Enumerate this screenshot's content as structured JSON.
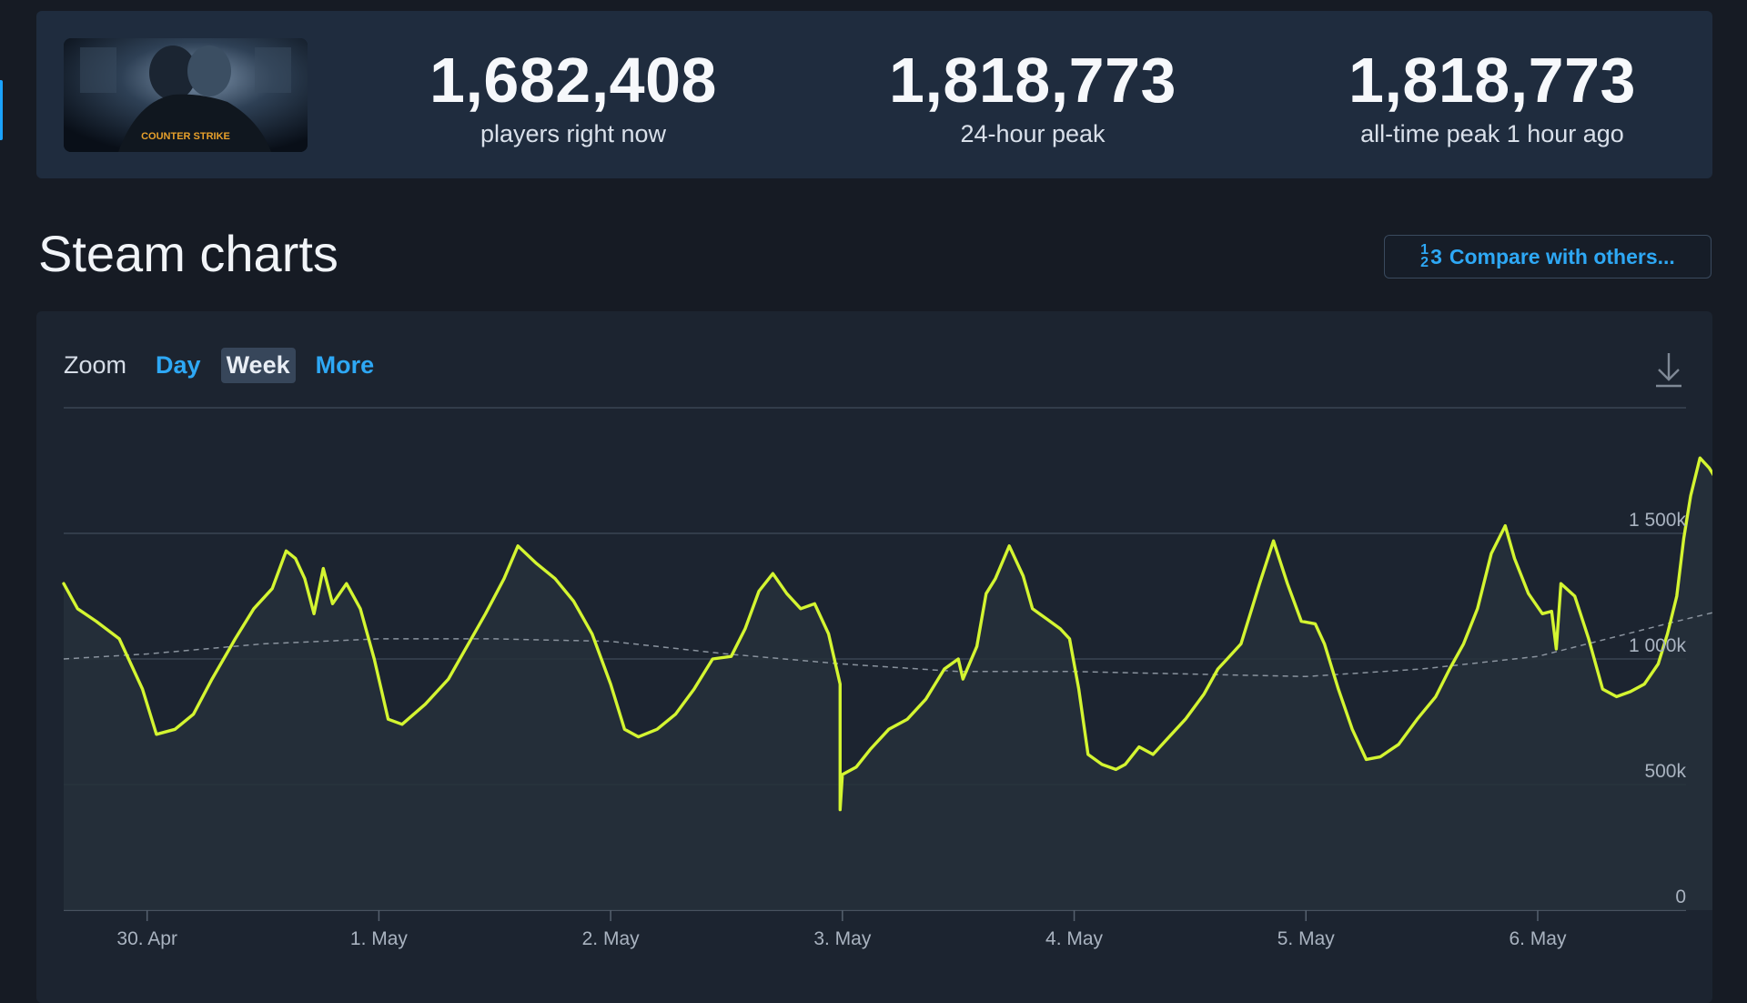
{
  "stats": [
    {
      "value": "1,682,408",
      "label": "players right now"
    },
    {
      "value": "1,818,773",
      "label": "24-hour peak"
    },
    {
      "value": "1,818,773",
      "label": "all-time peak 1 hour ago"
    }
  ],
  "game_thumb": {
    "logo_text": "COUNTER STRIKE"
  },
  "section_title": "Steam charts",
  "compare_button": {
    "numerator": "1",
    "denominator": "2",
    "digit": "3",
    "label": "Compare with others..."
  },
  "zoom": {
    "label": "Zoom",
    "options": [
      "Day",
      "Week",
      "More"
    ],
    "selected": "Week"
  },
  "download_icon": "download-icon",
  "colors": {
    "series": "#d4f531",
    "average": "#8a939e",
    "accent": "#2ea8f5"
  },
  "chart_data": {
    "type": "line",
    "x_labels": [
      "30. Apr",
      "1. May",
      "2. May",
      "3. May",
      "4. May",
      "5. May",
      "6. May"
    ],
    "y_ticks": [
      {
        "value": 0,
        "label": "0"
      },
      {
        "value": 500000,
        "label": "500k"
      },
      {
        "value": 1000000,
        "label": "1 000k"
      },
      {
        "value": 1500000,
        "label": "1 500k"
      }
    ],
    "ylim": [
      0,
      2000000
    ],
    "x_range_days": [
      -0.36,
      6.64
    ],
    "grid": true,
    "series": [
      {
        "kind": "players",
        "points": [
          [
            -0.36,
            1300000
          ],
          [
            -0.3,
            1200000
          ],
          [
            -0.22,
            1150000
          ],
          [
            -0.12,
            1080000
          ],
          [
            -0.02,
            880000
          ],
          [
            0.04,
            700000
          ],
          [
            0.12,
            720000
          ],
          [
            0.2,
            780000
          ],
          [
            0.28,
            920000
          ],
          [
            0.38,
            1080000
          ],
          [
            0.46,
            1200000
          ],
          [
            0.54,
            1280000
          ],
          [
            0.6,
            1430000
          ],
          [
            0.64,
            1400000
          ],
          [
            0.68,
            1320000
          ],
          [
            0.72,
            1180000
          ],
          [
            0.76,
            1360000
          ],
          [
            0.8,
            1220000
          ],
          [
            0.86,
            1300000
          ],
          [
            0.92,
            1200000
          ],
          [
            0.98,
            1000000
          ],
          [
            1.04,
            760000
          ],
          [
            1.1,
            740000
          ],
          [
            1.2,
            820000
          ],
          [
            1.3,
            920000
          ],
          [
            1.38,
            1050000
          ],
          [
            1.46,
            1180000
          ],
          [
            1.54,
            1320000
          ],
          [
            1.6,
            1450000
          ],
          [
            1.68,
            1380000
          ],
          [
            1.76,
            1320000
          ],
          [
            1.84,
            1230000
          ],
          [
            1.92,
            1100000
          ],
          [
            2.0,
            900000
          ],
          [
            2.06,
            720000
          ],
          [
            2.12,
            690000
          ],
          [
            2.2,
            720000
          ],
          [
            2.28,
            780000
          ],
          [
            2.36,
            880000
          ],
          [
            2.44,
            1000000
          ],
          [
            2.52,
            1010000
          ],
          [
            2.58,
            1120000
          ],
          [
            2.64,
            1270000
          ],
          [
            2.7,
            1340000
          ],
          [
            2.76,
            1260000
          ],
          [
            2.82,
            1200000
          ],
          [
            2.88,
            1220000
          ],
          [
            2.94,
            1100000
          ],
          [
            2.99,
            900000
          ],
          [
            2.99,
            400000
          ],
          [
            3.0,
            540000
          ],
          [
            3.06,
            570000
          ],
          [
            3.12,
            640000
          ],
          [
            3.2,
            720000
          ],
          [
            3.28,
            760000
          ],
          [
            3.36,
            840000
          ],
          [
            3.44,
            960000
          ],
          [
            3.5,
            1000000
          ],
          [
            3.52,
            920000
          ],
          [
            3.58,
            1050000
          ],
          [
            3.62,
            1260000
          ],
          [
            3.66,
            1320000
          ],
          [
            3.72,
            1450000
          ],
          [
            3.78,
            1330000
          ],
          [
            3.82,
            1200000
          ],
          [
            3.88,
            1160000
          ],
          [
            3.94,
            1120000
          ],
          [
            3.98,
            1080000
          ],
          [
            4.02,
            880000
          ],
          [
            4.06,
            620000
          ],
          [
            4.12,
            580000
          ],
          [
            4.18,
            560000
          ],
          [
            4.22,
            580000
          ],
          [
            4.28,
            650000
          ],
          [
            4.34,
            620000
          ],
          [
            4.4,
            680000
          ],
          [
            4.48,
            760000
          ],
          [
            4.56,
            860000
          ],
          [
            4.62,
            960000
          ],
          [
            4.66,
            1000000
          ],
          [
            4.72,
            1060000
          ],
          [
            4.8,
            1300000
          ],
          [
            4.86,
            1470000
          ],
          [
            4.92,
            1300000
          ],
          [
            4.98,
            1150000
          ],
          [
            5.04,
            1140000
          ],
          [
            5.08,
            1060000
          ],
          [
            5.14,
            880000
          ],
          [
            5.2,
            720000
          ],
          [
            5.26,
            600000
          ],
          [
            5.32,
            610000
          ],
          [
            5.4,
            660000
          ],
          [
            5.48,
            760000
          ],
          [
            5.56,
            850000
          ],
          [
            5.62,
            960000
          ],
          [
            5.68,
            1060000
          ],
          [
            5.74,
            1200000
          ],
          [
            5.8,
            1420000
          ],
          [
            5.86,
            1530000
          ],
          [
            5.9,
            1400000
          ],
          [
            5.96,
            1260000
          ],
          [
            6.02,
            1180000
          ],
          [
            6.06,
            1190000
          ],
          [
            6.08,
            1040000
          ],
          [
            6.1,
            1300000
          ],
          [
            6.16,
            1250000
          ],
          [
            6.22,
            1080000
          ],
          [
            6.28,
            880000
          ],
          [
            6.34,
            850000
          ],
          [
            6.4,
            870000
          ],
          [
            6.46,
            900000
          ],
          [
            6.52,
            980000
          ],
          [
            6.56,
            1100000
          ],
          [
            6.6,
            1250000
          ],
          [
            6.63,
            1480000
          ],
          [
            6.66,
            1650000
          ],
          [
            6.7,
            1800000
          ],
          [
            6.74,
            1760000
          ],
          [
            6.78,
            1700000
          ]
        ]
      },
      {
        "kind": "moving-average",
        "points": [
          [
            -0.36,
            1000000
          ],
          [
            0.0,
            1020000
          ],
          [
            0.5,
            1060000
          ],
          [
            1.0,
            1080000
          ],
          [
            1.5,
            1080000
          ],
          [
            2.0,
            1070000
          ],
          [
            2.5,
            1020000
          ],
          [
            3.0,
            980000
          ],
          [
            3.5,
            950000
          ],
          [
            4.0,
            950000
          ],
          [
            4.5,
            940000
          ],
          [
            5.0,
            930000
          ],
          [
            5.5,
            960000
          ],
          [
            6.0,
            1010000
          ],
          [
            6.3,
            1080000
          ],
          [
            6.6,
            1150000
          ],
          [
            6.78,
            1190000
          ]
        ]
      }
    ]
  }
}
